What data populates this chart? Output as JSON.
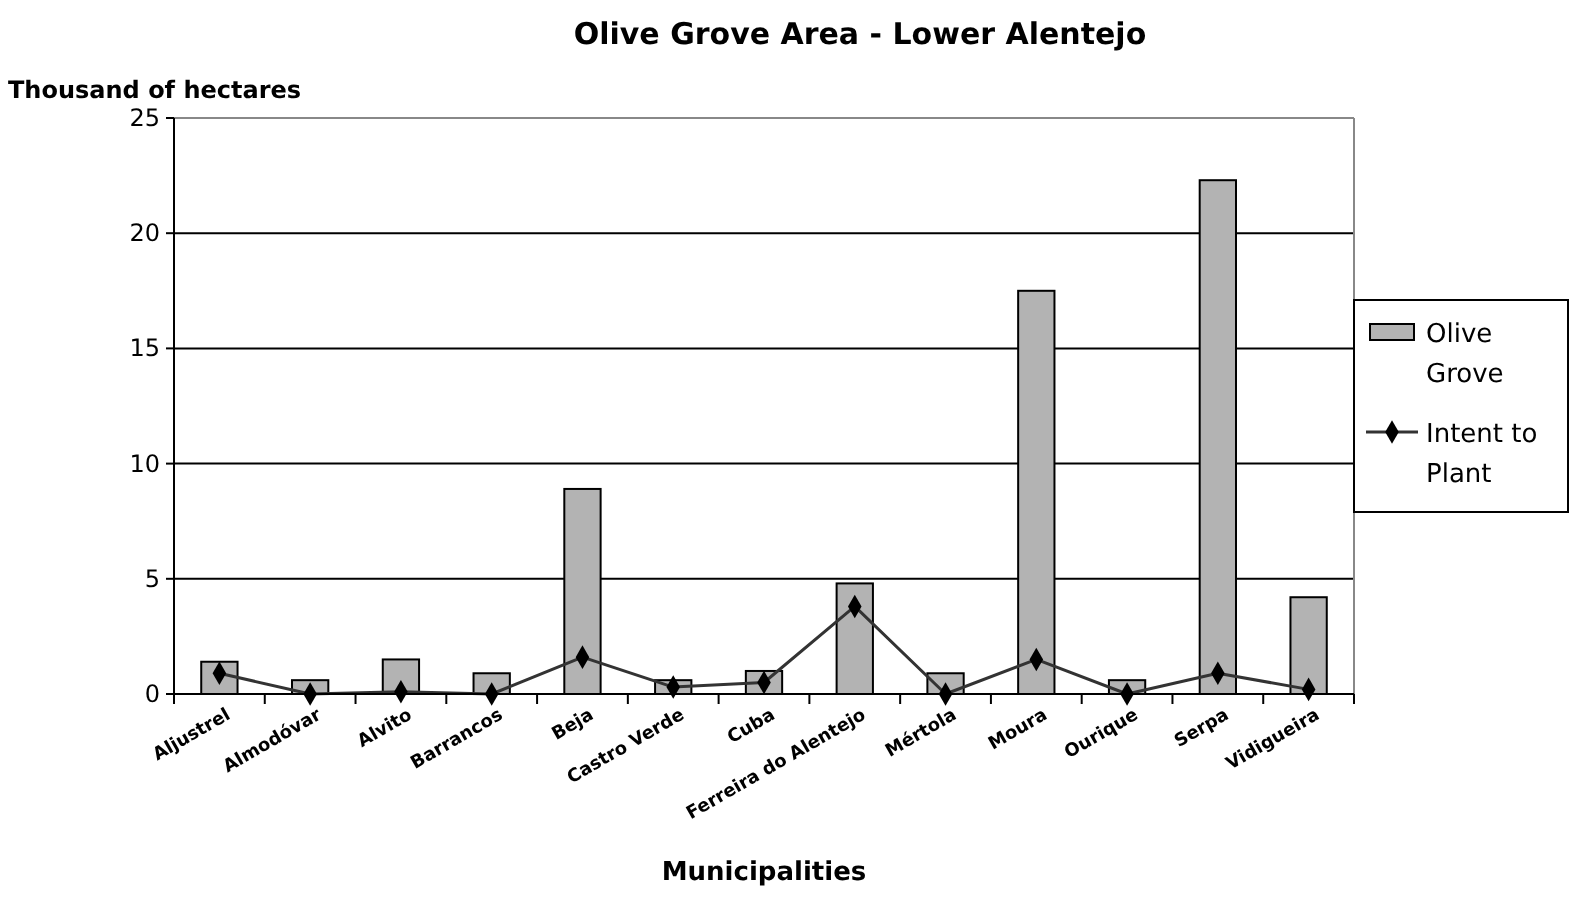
{
  "chart_data": {
    "type": "bar",
    "title": "Olive Grove Area - Lower Alentejo",
    "xlabel": "Municipalities",
    "ylabel": "Thousand of hectares",
    "categories": [
      "Aljustrel",
      "Almodóvar",
      "Alvito",
      "Barrancos",
      "Beja",
      "Castro Verde",
      "Cuba",
      "Ferreira do Alentejo",
      "Mértola",
      "Moura",
      "Ourique",
      "Serpa",
      "Vidigueira"
    ],
    "series": [
      {
        "name": "Olive Grove",
        "color": "#b3b3b3",
        "values": [
          1.4,
          0.6,
          1.5,
          0.9,
          8.9,
          0.6,
          1.0,
          4.8,
          0.9,
          17.5,
          0.6,
          22.3,
          4.2
        ]
      },
      {
        "name": "Intent to Plant",
        "type": "line",
        "color": "#333333",
        "marker": "diamond",
        "values": [
          0.9,
          0,
          0.1,
          0,
          1.6,
          0.3,
          0.5,
          3.8,
          0,
          1.5,
          0,
          0.9,
          0.2
        ]
      }
    ],
    "ylim": [
      0,
      25
    ],
    "yticks": [
      0,
      5,
      10,
      15,
      20,
      25
    ],
    "grid": "y",
    "legend": "right"
  }
}
